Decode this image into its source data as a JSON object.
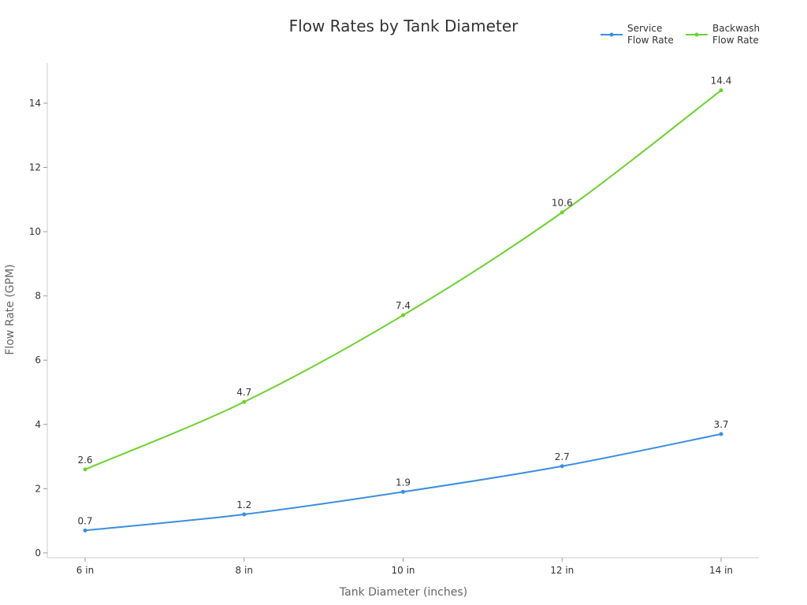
{
  "chart_data": {
    "type": "line",
    "title": "Flow Rates by Tank Diameter",
    "x_label": "Tank Diameter (inches)",
    "y_label": "Flow Rate (GPM)",
    "categories": [
      "6 in",
      "8 in",
      "10 in",
      "12 in",
      "14 in"
    ],
    "series": [
      {
        "name": "Service Flow Rate",
        "color": "#3a8ee0",
        "values": [
          0.7,
          1.2,
          1.9,
          2.7,
          3.7
        ]
      },
      {
        "name": "Backwash Flow Rate",
        "color": "#6dd12f",
        "values": [
          2.6,
          4.7,
          7.4,
          10.6,
          14.4
        ]
      }
    ],
    "ylim": [
      -0.15,
      15.25
    ],
    "yticks": [
      0,
      2,
      4,
      6,
      8,
      10,
      12,
      14
    ],
    "grid": false,
    "legend": "top-right"
  }
}
